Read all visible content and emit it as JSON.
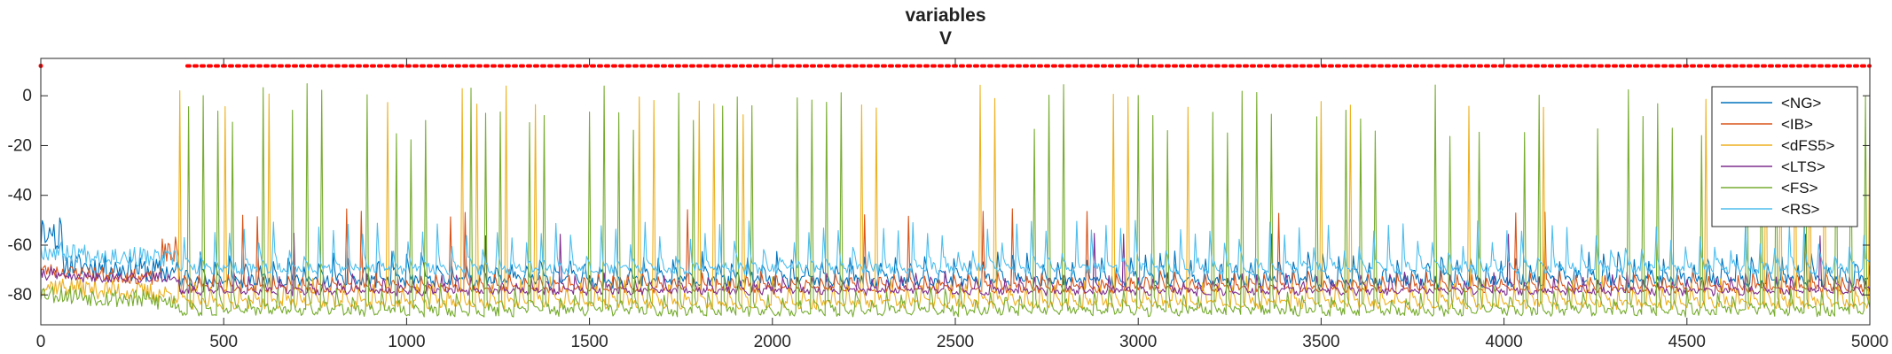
{
  "chart_data": {
    "type": "line",
    "title": [
      "variables",
      "V"
    ],
    "xlabel": "",
    "ylabel": "",
    "xlim": [
      0,
      5000
    ],
    "ylim": [
      -92,
      15
    ],
    "xticks": [
      0,
      500,
      1000,
      1500,
      2000,
      2500,
      3000,
      3500,
      4000,
      4500,
      5000
    ],
    "xtick_labels": [
      "0",
      "500",
      "1000",
      "1500",
      "2000",
      "2500",
      "3000",
      "3500",
      "4000",
      "4500",
      "5000"
    ],
    "yticks": [
      0,
      -20,
      -40,
      -60,
      -80
    ],
    "ytick_labels": [
      "0",
      "-20",
      "-40",
      "-60",
      "-80"
    ],
    "grid": false,
    "legend_position": "top-right",
    "threshold_line": {
      "y": 12,
      "x_start": 400,
      "x_end": 5000,
      "color": "#ff0000",
      "style": "dotted"
    },
    "series": [
      {
        "name": "<NG>",
        "color": "#0072bd",
        "baseline": -75,
        "variability": 5,
        "seed": 11
      },
      {
        "name": "<IB>",
        "color": "#d95319",
        "baseline": -78,
        "variability": 3,
        "seed": 23
      },
      {
        "name": "<dFS5>",
        "color": "#edb120",
        "baseline": -84,
        "variability": 4,
        "seed": 37
      },
      {
        "name": "<LTS>",
        "color": "#7e2f8e",
        "baseline": -79,
        "variability": 3,
        "seed": 41
      },
      {
        "name": "<FS>",
        "color": "#77ac30",
        "baseline": -87,
        "variability": 4,
        "seed": 53
      },
      {
        "name": "<RS>",
        "color": "#4dbeee",
        "baseline": -70,
        "variability": 4,
        "seed": 67
      }
    ]
  }
}
